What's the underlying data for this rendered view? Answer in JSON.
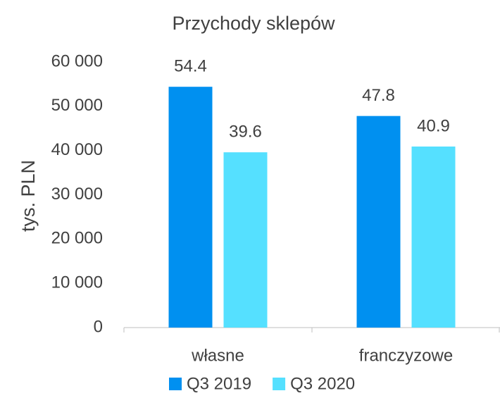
{
  "chart_data": {
    "type": "bar",
    "title": "Przychody sklepów",
    "y_label": "tys. PLN",
    "categories": [
      "własne",
      "franczyzowe"
    ],
    "series": [
      {
        "name": "Q3 2019",
        "color": "#0090f0",
        "values": [
          54400,
          47800
        ],
        "value_labels": [
          "54.4",
          "47.8"
        ]
      },
      {
        "name": "Q3 2020",
        "color": "#55e0ff",
        "values": [
          39600,
          40900
        ],
        "value_labels": [
          "39.6",
          "40.9"
        ]
      }
    ],
    "ylim": [
      0,
      60000
    ],
    "yticks": [
      0,
      {
        "value": 10000,
        "label": "10 000"
      },
      {
        "value": 20000,
        "label": "20 000"
      },
      {
        "value": 30000,
        "label": "30 000"
      },
      {
        "value": 40000,
        "label": "40 000"
      },
      {
        "value": 50000,
        "label": "50 000"
      },
      {
        "value": 60000,
        "label": "60 000"
      }
    ],
    "grid": false,
    "legend": "bottom"
  }
}
